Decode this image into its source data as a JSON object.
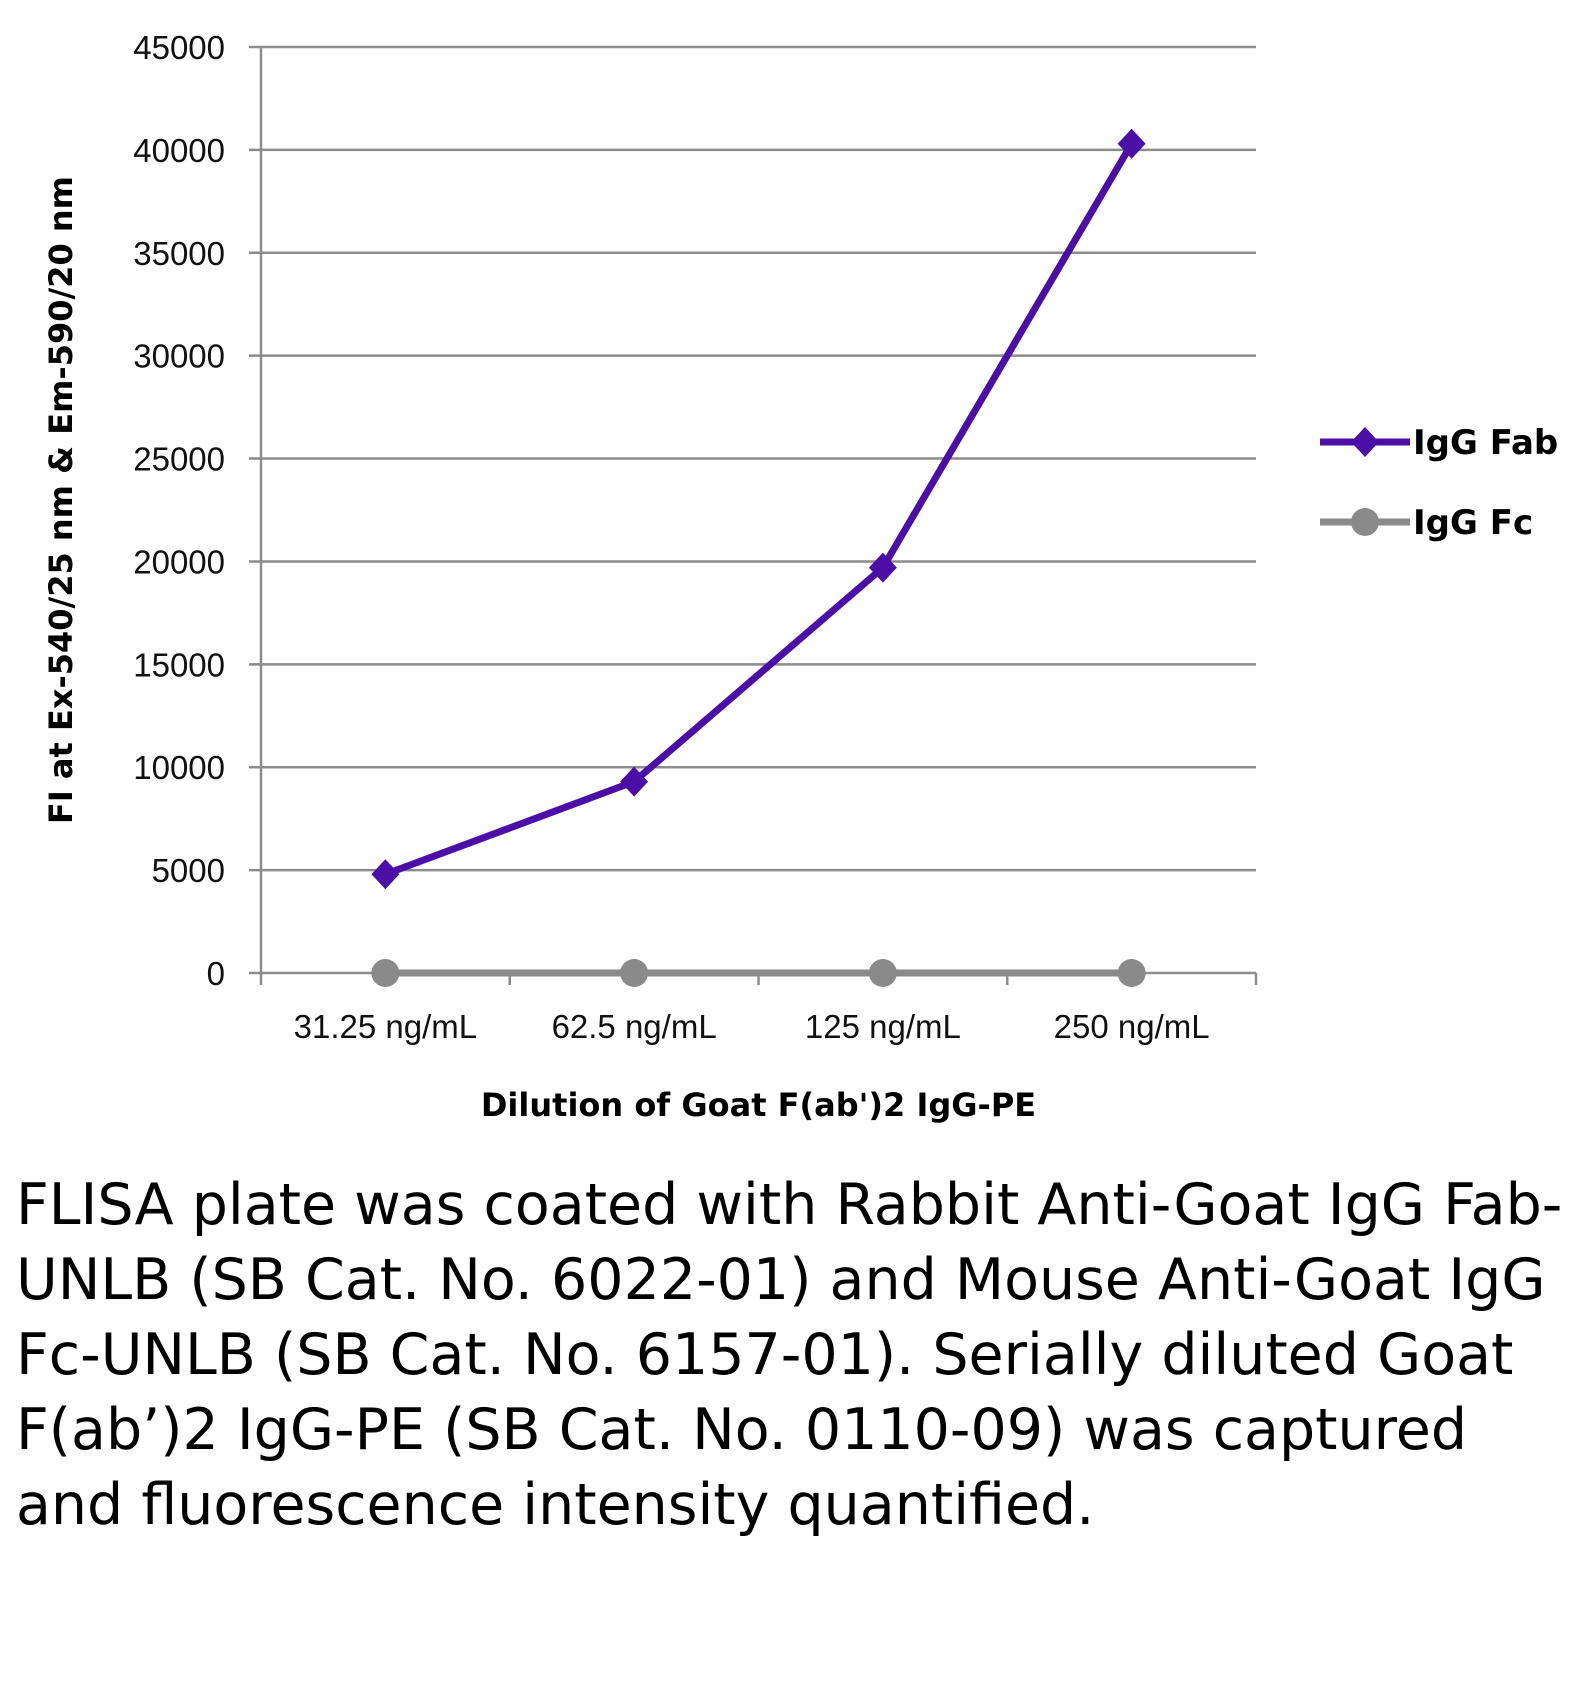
{
  "chart_data": {
    "type": "line",
    "categories": [
      "31.25 ng/mL",
      "62.5 ng/mL",
      "125 ng/mL",
      "250 ng/mL"
    ],
    "series": [
      {
        "name": "IgG Fab",
        "values": [
          4800,
          9300,
          19700,
          40300
        ],
        "color": "#4b0fa8",
        "marker": "diamond"
      },
      {
        "name": "IgG Fc",
        "values": [
          0,
          0,
          0,
          0
        ],
        "color": "#8a8a8a",
        "marker": "circle"
      }
    ],
    "xlabel": "Dilution of Goat F(ab')2 IgG-PE",
    "ylabel": "FI at Ex-540/25 nm & Em-590/20 nm",
    "ylim": [
      0,
      45000
    ],
    "yticks": [
      0,
      5000,
      10000,
      15000,
      20000,
      25000,
      30000,
      35000,
      40000,
      45000
    ],
    "grid": true,
    "legend": "right"
  },
  "caption": "FLISA plate was coated with Rabbit Anti-Goat IgG Fab-UNLB (SB Cat. No. 6022-01) and Mouse Anti-Goat IgG Fc-UNLB (SB Cat. No. 6157-01).  Serially diluted Goat F(ab’)2 IgG-PE (SB Cat. No. 0110-09) was captured and fluorescence intensity quantified."
}
